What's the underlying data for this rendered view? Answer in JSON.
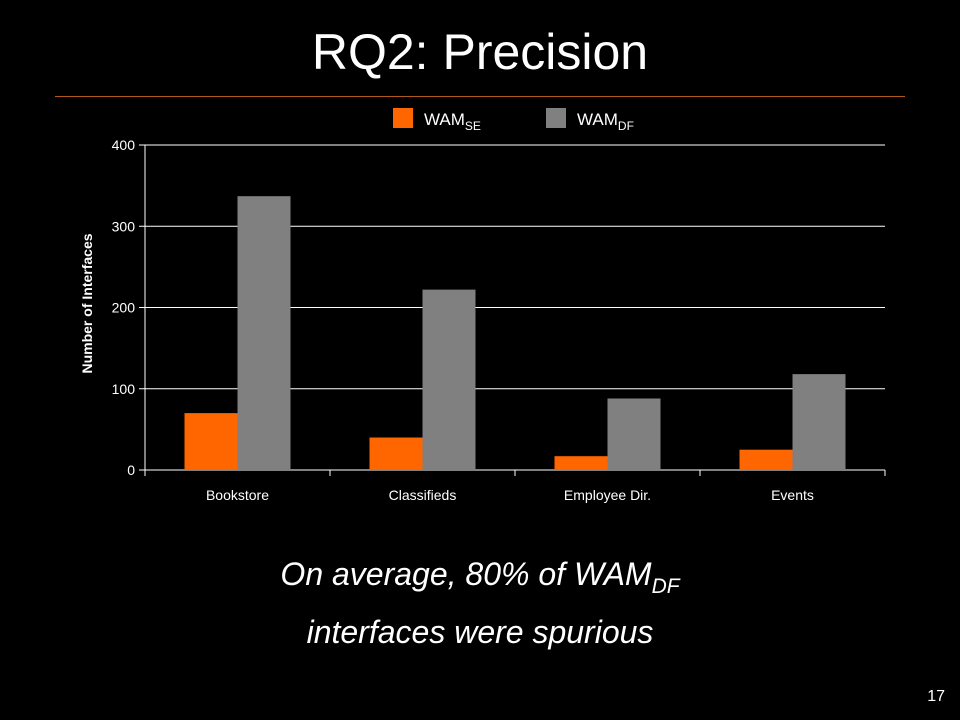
{
  "slide": {
    "title": "RQ2: Precision",
    "caption_line1_prefix": "On average, 80% of ",
    "caption_line1_main": "WAM",
    "caption_line1_sub": "DF",
    "caption_line2": "interfaces were spurious",
    "page_number": "17"
  },
  "colors": {
    "background": "#000000",
    "title_rule": "#b35a1a",
    "series_se": "#ff6600",
    "series_df": "#808080",
    "gridline": "#ffffff"
  },
  "chart_data": {
    "type": "bar",
    "categories": [
      "Bookstore",
      "Classifieds",
      "Employee Dir.",
      "Events"
    ],
    "series": [
      {
        "name": "WAM",
        "name_sub": "SE",
        "color": "#ff6600",
        "values": [
          70,
          40,
          17,
          25
        ]
      },
      {
        "name": "WAM",
        "name_sub": "DF",
        "color": "#808080",
        "values": [
          337,
          222,
          88,
          118
        ]
      }
    ],
    "ylabel": "Number of Interfaces",
    "yticks": [
      0,
      100,
      200,
      300,
      400
    ],
    "ylim": [
      0,
      400
    ],
    "grid": true,
    "legend": "top"
  }
}
